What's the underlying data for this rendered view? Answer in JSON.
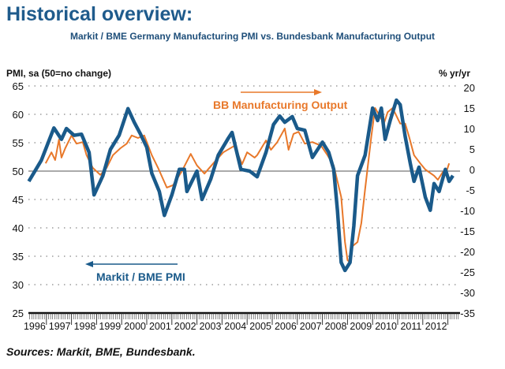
{
  "title": "Historical overview:",
  "subtitle": "Markit / BME Germany Manufacturing PMI vs. Bundesbank Manufacturing Output",
  "source": "Sources: Markit, BME, Bundesbank.",
  "colors": {
    "pmi": "#1a5a8a",
    "output": "#e8782a"
  },
  "chart_data": {
    "type": "line",
    "title": "Markit / BME Germany Manufacturing PMI vs. Bundesbank Manufacturing Output",
    "ylabel_left": "PMI, sa (50=no change)",
    "ylabel_right": "% yr/yr",
    "ylim_left": [
      25,
      65
    ],
    "ylim_right": [
      -35,
      20
    ],
    "yticks_left": [
      25,
      30,
      35,
      40,
      45,
      50,
      55,
      60,
      65
    ],
    "yticks_right": [
      -35,
      -30,
      -25,
      -20,
      -15,
      -10,
      -5,
      0,
      5,
      10,
      15,
      20
    ],
    "xticks": [
      "1996",
      "1997",
      "1998",
      "1999",
      "2000",
      "2001",
      "2002",
      "2003",
      "2004",
      "2005",
      "2006",
      "2007",
      "2008",
      "2009",
      "2010",
      "2011",
      "2012"
    ],
    "grid": true,
    "series": [
      {
        "name": "Markit / BME PMI",
        "axis": "left",
        "color": "#1a5a8a",
        "points": [
          [
            1996.3,
            48.2
          ],
          [
            1996.8,
            51.9
          ],
          [
            1997.3,
            57.6
          ],
          [
            1997.6,
            55.6
          ],
          [
            1997.8,
            57.5
          ],
          [
            1998.1,
            56.3
          ],
          [
            1998.4,
            56.5
          ],
          [
            1998.7,
            53.3
          ],
          [
            1998.9,
            45.8
          ],
          [
            1999.25,
            49.2
          ],
          [
            1999.55,
            53.8
          ],
          [
            1999.9,
            56.3
          ],
          [
            2000.25,
            61.0
          ],
          [
            2000.5,
            58.6
          ],
          [
            2000.75,
            56.5
          ],
          [
            2001.0,
            54.2
          ],
          [
            2001.2,
            49.6
          ],
          [
            2001.5,
            46.4
          ],
          [
            2001.7,
            42.2
          ],
          [
            2002.0,
            45.8
          ],
          [
            2002.3,
            50.3
          ],
          [
            2002.5,
            50.3
          ],
          [
            2002.6,
            46.4
          ],
          [
            2002.8,
            48.2
          ],
          [
            2003.0,
            50.0
          ],
          [
            2003.2,
            45.0
          ],
          [
            2003.55,
            48.6
          ],
          [
            2003.85,
            52.8
          ],
          [
            2004.25,
            55.8
          ],
          [
            2004.4,
            56.8
          ],
          [
            2004.75,
            50.3
          ],
          [
            2005.1,
            50.0
          ],
          [
            2005.4,
            49.0
          ],
          [
            2005.75,
            53.3
          ],
          [
            2006.05,
            58.2
          ],
          [
            2006.3,
            59.7
          ],
          [
            2006.5,
            58.6
          ],
          [
            2006.8,
            59.6
          ],
          [
            2007.0,
            57.5
          ],
          [
            2007.3,
            57.2
          ],
          [
            2007.6,
            52.4
          ],
          [
            2008.0,
            55.1
          ],
          [
            2008.25,
            53.3
          ],
          [
            2008.45,
            50.3
          ],
          [
            2008.6,
            43.0
          ],
          [
            2008.75,
            33.9
          ],
          [
            2008.9,
            32.5
          ],
          [
            2009.1,
            33.9
          ],
          [
            2009.25,
            40.3
          ],
          [
            2009.4,
            49.2
          ],
          [
            2009.7,
            52.8
          ],
          [
            2010.0,
            61.1
          ],
          [
            2010.2,
            58.9
          ],
          [
            2010.35,
            61.1
          ],
          [
            2010.5,
            55.6
          ],
          [
            2010.7,
            58.9
          ],
          [
            2010.95,
            62.5
          ],
          [
            2011.1,
            61.7
          ],
          [
            2011.3,
            56.1
          ],
          [
            2011.5,
            51.4
          ],
          [
            2011.65,
            48.2
          ],
          [
            2011.85,
            50.7
          ],
          [
            2012.1,
            45.4
          ],
          [
            2012.3,
            43.1
          ],
          [
            2012.45,
            47.8
          ],
          [
            2012.65,
            46.4
          ],
          [
            2012.9,
            50.3
          ],
          [
            2013.05,
            48.2
          ],
          [
            2013.2,
            49.2
          ]
        ]
      },
      {
        "name": "BB Manufacturing Output",
        "axis": "right",
        "color": "#e8782a",
        "points": [
          [
            1996.97,
            1.5
          ],
          [
            1997.2,
            4.2
          ],
          [
            1997.35,
            2.3
          ],
          [
            1997.5,
            7.3
          ],
          [
            1997.6,
            2.9
          ],
          [
            1997.75,
            5.2
          ],
          [
            1998.0,
            8.3
          ],
          [
            1998.2,
            6.3
          ],
          [
            1998.45,
            6.7
          ],
          [
            1998.6,
            3.5
          ],
          [
            1998.85,
            0.4
          ],
          [
            1999.15,
            -1.3
          ],
          [
            1999.4,
            0.4
          ],
          [
            1999.65,
            3.5
          ],
          [
            1999.95,
            5.2
          ],
          [
            2000.2,
            6.3
          ],
          [
            2000.4,
            8.3
          ],
          [
            2000.65,
            7.7
          ],
          [
            2000.9,
            8.3
          ],
          [
            2001.2,
            3.5
          ],
          [
            2001.45,
            0.4
          ],
          [
            2001.8,
            -4.4
          ],
          [
            2002.05,
            -3.8
          ],
          [
            2002.4,
            -0.4
          ],
          [
            2002.75,
            3.8
          ],
          [
            2003.0,
            1.0
          ],
          [
            2003.3,
            -1.0
          ],
          [
            2003.65,
            1.5
          ],
          [
            2004.05,
            4.2
          ],
          [
            2004.5,
            5.8
          ],
          [
            2004.8,
            1.3
          ],
          [
            2005.0,
            4.2
          ],
          [
            2005.3,
            2.9
          ],
          [
            2005.4,
            3.5
          ],
          [
            2005.75,
            7.1
          ],
          [
            2005.95,
            4.8
          ],
          [
            2006.2,
            6.7
          ],
          [
            2006.5,
            10.0
          ],
          [
            2006.65,
            4.8
          ],
          [
            2006.85,
            8.7
          ],
          [
            2007.05,
            9.2
          ],
          [
            2007.3,
            6.3
          ],
          [
            2007.6,
            6.7
          ],
          [
            2007.95,
            5.8
          ],
          [
            2008.2,
            3.5
          ],
          [
            2008.45,
            1.0
          ],
          [
            2008.75,
            -6.7
          ],
          [
            2008.9,
            -17.7
          ],
          [
            2009.0,
            -22.1
          ],
          [
            2009.1,
            -22.7
          ],
          [
            2009.2,
            -18.7
          ],
          [
            2009.4,
            -17.7
          ],
          [
            2009.55,
            -13.1
          ],
          [
            2009.7,
            -4.8
          ],
          [
            2009.95,
            8.1
          ],
          [
            2010.1,
            15.0
          ],
          [
            2010.3,
            12.9
          ],
          [
            2010.45,
            11.2
          ],
          [
            2010.6,
            14.0
          ],
          [
            2010.8,
            15.0
          ],
          [
            2010.95,
            13.1
          ],
          [
            2011.1,
            11.2
          ],
          [
            2011.3,
            11.2
          ],
          [
            2011.45,
            8.1
          ],
          [
            2011.65,
            3.5
          ],
          [
            2011.9,
            1.5
          ],
          [
            2012.1,
            0.0
          ],
          [
            2012.45,
            -1.5
          ],
          [
            2012.6,
            -2.5
          ],
          [
            2012.8,
            -0.6
          ],
          [
            2012.9,
            -1.3
          ],
          [
            2013.05,
            1.5
          ]
        ]
      }
    ],
    "annotations": [
      {
        "text": "BB Manufacturing Output",
        "arrow": "right",
        "series": "output"
      },
      {
        "text": "Markit / BME PMI",
        "arrow": "left",
        "series": "pmi"
      }
    ]
  }
}
